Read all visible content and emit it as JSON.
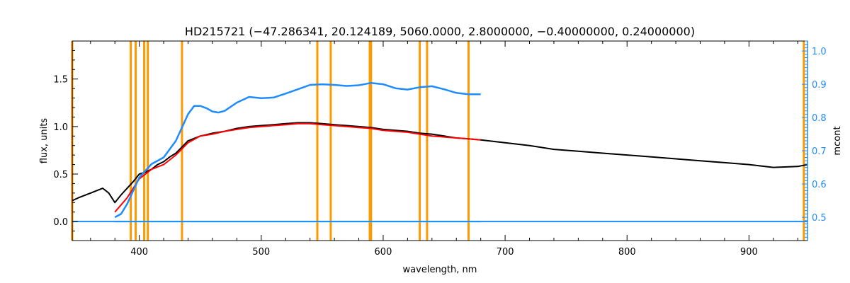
{
  "chart_data": {
    "type": "line",
    "title": "HD215721    (−47.286341, 20.124189, 5060.0000, 2.8000000, −0.40000000, 0.24000000)",
    "xlabel": "wavelength, nm",
    "ylabel": "flux, units",
    "ylabel_right": "mcont",
    "xlim": [
      345,
      948
    ],
    "ylim": [
      -0.2,
      1.9
    ],
    "ylim_right": [
      0.43,
      1.03
    ],
    "x_ticks": [
      400,
      500,
      600,
      700,
      800,
      900
    ],
    "y_ticks": [
      0.0,
      0.5,
      1.0,
      1.5
    ],
    "y_ticks_right": [
      0.5,
      0.6,
      0.7,
      0.8,
      0.9,
      1.0
    ],
    "x_tick_labels": [
      "400",
      "500",
      "600",
      "700",
      "800",
      "900"
    ],
    "y_tick_labels": [
      "0.0",
      "0.5",
      "1.0",
      "1.5"
    ],
    "y_tick_labels_right": [
      "0.5",
      "0.6",
      "0.7",
      "0.8",
      "0.9",
      "1.0"
    ],
    "line_markers_nm": [
      345,
      393,
      397,
      404,
      407,
      435,
      546,
      557,
      589,
      590,
      630,
      636,
      670,
      945
    ],
    "series": [
      {
        "color": "#000000",
        "x": [
          345,
          350,
          360,
          370,
          375,
          380,
          385,
          390,
          395,
          400,
          405,
          410,
          415,
          420,
          425,
          430,
          440,
          450,
          460,
          470,
          480,
          490,
          500,
          510,
          520,
          530,
          540,
          550,
          560,
          570,
          580,
          590,
          600,
          610,
          620,
          630,
          640,
          650,
          660,
          670,
          680,
          700,
          720,
          740,
          760,
          780,
          800,
          820,
          840,
          860,
          880,
          900,
          920,
          940,
          948
        ],
        "y": [
          0.22,
          0.25,
          0.3,
          0.35,
          0.3,
          0.2,
          0.28,
          0.35,
          0.42,
          0.5,
          0.52,
          0.55,
          0.6,
          0.63,
          0.68,
          0.72,
          0.85,
          0.9,
          0.93,
          0.95,
          0.98,
          1.0,
          1.01,
          1.02,
          1.03,
          1.04,
          1.04,
          1.03,
          1.02,
          1.01,
          1.0,
          0.99,
          0.97,
          0.96,
          0.95,
          0.93,
          0.92,
          0.9,
          0.88,
          0.87,
          0.86,
          0.83,
          0.8,
          0.76,
          0.74,
          0.72,
          0.7,
          0.68,
          0.66,
          0.64,
          0.62,
          0.6,
          0.57,
          0.58,
          0.6
        ]
      },
      {
        "color": "#ff0000",
        "x": [
          380,
          390,
          400,
          410,
          420,
          430,
          440,
          450,
          460,
          470,
          480,
          490,
          500,
          510,
          520,
          530,
          540,
          550,
          560,
          570,
          580,
          590,
          600,
          610,
          620,
          630,
          640,
          650,
          660,
          670,
          680
        ],
        "y": [
          0.1,
          0.25,
          0.45,
          0.55,
          0.6,
          0.7,
          0.83,
          0.9,
          0.92,
          0.95,
          0.97,
          0.99,
          1.0,
          1.01,
          1.02,
          1.03,
          1.03,
          1.02,
          1.01,
          1.0,
          0.99,
          0.98,
          0.96,
          0.95,
          0.94,
          0.92,
          0.9,
          0.89,
          0.88,
          0.87,
          0.86
        ]
      },
      {
        "color": "#00e060",
        "x": [
          380,
          400,
          420,
          440,
          460,
          480,
          500,
          520,
          540,
          560,
          580,
          600,
          620,
          640,
          660,
          680
        ],
        "y": [
          0.0,
          0.0,
          0.0,
          0.0,
          0.0,
          0.0,
          0.0,
          0.0,
          0.0,
          0.0,
          0.0,
          0.0,
          0.0,
          0.0,
          0.0,
          0.0
        ]
      },
      {
        "color": "#1e8cff",
        "axis": "right",
        "x": [
          380,
          385,
          390,
          395,
          400,
          410,
          420,
          430,
          435,
          440,
          445,
          450,
          455,
          460,
          465,
          470,
          480,
          490,
          500,
          510,
          520,
          530,
          540,
          550,
          560,
          570,
          580,
          590,
          600,
          610,
          620,
          630,
          640,
          650,
          660,
          670,
          680
        ],
        "y": [
          0.5,
          0.51,
          0.54,
          0.58,
          0.62,
          0.66,
          0.68,
          0.73,
          0.77,
          0.81,
          0.835,
          0.835,
          0.828,
          0.818,
          0.815,
          0.82,
          0.845,
          0.862,
          0.858,
          0.86,
          0.872,
          0.885,
          0.898,
          0.9,
          0.898,
          0.895,
          0.897,
          0.904,
          0.9,
          0.888,
          0.884,
          0.891,
          0.894,
          0.885,
          0.874,
          0.87,
          0.87
        ]
      },
      {
        "color": "#1e8cff",
        "x": [
          345,
          948
        ],
        "y": [
          0.0,
          0.0
        ]
      }
    ],
    "colors": {
      "observed": "#000000",
      "model": "#ff0000",
      "residual": "#00e060",
      "continuum": "#1e8cff",
      "marker": "#ff9900",
      "right_axis": "#1e8cff"
    },
    "grid": false,
    "legend": "none"
  }
}
